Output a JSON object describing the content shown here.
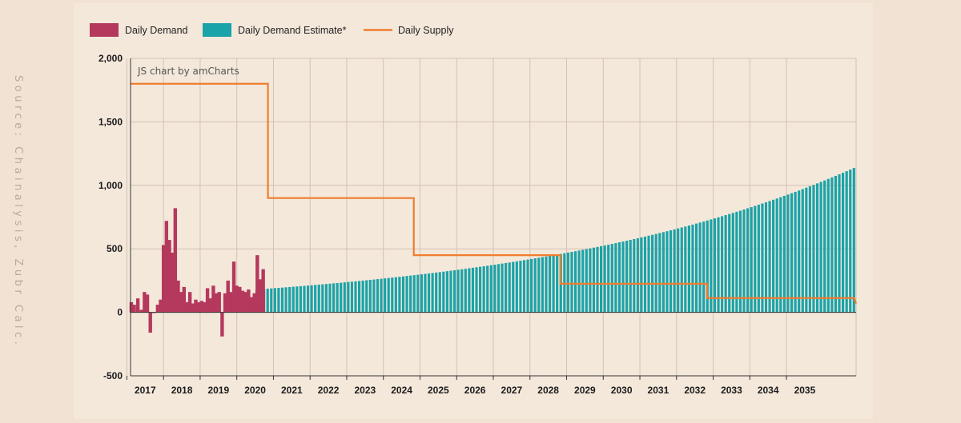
{
  "source_note": "Source: Chainalysis, Zubr Calc.",
  "credit": "JS chart by amCharts",
  "colors": {
    "demand": "#b5385d",
    "estimate": "#1aa3a8",
    "supply": "#f07c2e",
    "grid": "#d2c2b3",
    "axis": "#333333"
  },
  "chart_data": {
    "type": "bar",
    "legend_position": "top-left",
    "grid": true,
    "ylim": [
      -500,
      2000
    ],
    "y_ticks": [
      "2,000",
      "1,500",
      "1,000",
      "500",
      "0",
      "-500"
    ],
    "y_tick_values": [
      2000,
      1500,
      1000,
      500,
      0,
      -500
    ],
    "x_ticks": [
      "2017",
      "2018",
      "2019",
      "2020",
      "2021",
      "2022",
      "2023",
      "2024",
      "2025",
      "2026",
      "2027",
      "2028",
      "2029",
      "2030",
      "2031",
      "2032",
      "2033",
      "2034",
      "2035"
    ],
    "x_tick_values": [
      2017,
      2018,
      2019,
      2020,
      2021,
      2022,
      2023,
      2024,
      2025,
      2026,
      2027,
      2028,
      2029,
      2030,
      2031,
      2032,
      2033,
      2034,
      2035
    ],
    "xlim": [
      2016.6,
      2036.4
    ],
    "series": [
      {
        "name": "Daily Demand",
        "type": "bar",
        "x": [
          2016.62,
          2016.7,
          2016.8,
          2016.9,
          2016.98,
          2017.06,
          2017.14,
          2017.24,
          2017.34,
          2017.42,
          2017.5,
          2017.58,
          2017.66,
          2017.74,
          2017.82,
          2017.9,
          2017.98,
          2018.06,
          2018.14,
          2018.22,
          2018.3,
          2018.38,
          2018.46,
          2018.54,
          2018.62,
          2018.7,
          2018.78,
          2018.86,
          2018.94,
          2019.02,
          2019.1,
          2019.18,
          2019.26,
          2019.34,
          2019.42,
          2019.5,
          2019.58,
          2019.66,
          2019.74,
          2019.82,
          2019.9,
          2019.98
        ],
        "values": [
          80,
          60,
          110,
          20,
          160,
          140,
          -160,
          0,
          60,
          100,
          530,
          720,
          570,
          470,
          820,
          250,
          160,
          200,
          80,
          160,
          70,
          100,
          80,
          90,
          80,
          190,
          110,
          210,
          150,
          160,
          -190,
          150,
          250,
          160,
          400,
          210,
          200,
          170,
          160,
          180,
          120,
          150
        ]
      },
      {
        "name": "",
        "type": "bar",
        "x": [
          2020.06,
          2020.14,
          2020.22
        ],
        "values": [
          450,
          260,
          340
        ]
      },
      {
        "name": "Daily Demand Estimate*",
        "type": "bar",
        "x_start": 2020.0,
        "x_end": 2036.4,
        "step": 0.1,
        "start_value": 180,
        "end_value": 1150,
        "growth": "exponential"
      },
      {
        "name": "Daily Supply",
        "type": "step-line",
        "x": [
          2016.6,
          2020.35,
          2020.35,
          2024.33,
          2024.33,
          2028.33,
          2028.33,
          2032.33,
          2032.33,
          2036.35,
          2036.4
        ],
        "values": [
          1800,
          1800,
          900,
          900,
          450,
          450,
          225,
          225,
          112.5,
          112.5,
          70
        ]
      }
    ]
  }
}
